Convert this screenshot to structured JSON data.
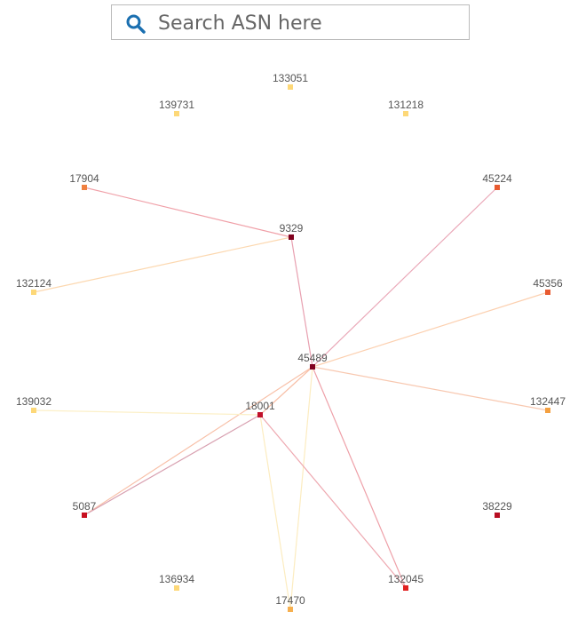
{
  "search": {
    "placeholder": "Search ASN here"
  },
  "nodes": [
    {
      "label": "133051",
      "color": "#fdd878"
    },
    {
      "label": "139731",
      "color": "#fdd878"
    },
    {
      "label": "131218",
      "color": "#fdd878"
    },
    {
      "label": "17904",
      "color": "#f08040"
    },
    {
      "label": "45224",
      "color": "#e85a30"
    },
    {
      "label": "9329",
      "color": "#80001e"
    },
    {
      "label": "132124",
      "color": "#fdd878"
    },
    {
      "label": "45356",
      "color": "#e85a30"
    },
    {
      "label": "45489",
      "color": "#80001e"
    },
    {
      "label": "139032",
      "color": "#fdd878"
    },
    {
      "label": "18001",
      "color": "#c0102a"
    },
    {
      "label": "132447",
      "color": "#f4a040"
    },
    {
      "label": "5087",
      "color": "#c81020"
    },
    {
      "label": "38229",
      "color": "#b80e22"
    },
    {
      "label": "136934",
      "color": "#fdd878"
    },
    {
      "label": "132045",
      "color": "#e02020"
    },
    {
      "label": "17470",
      "color": "#f6b050"
    }
  ],
  "edges": [
    {
      "source": 3,
      "target": 5,
      "color": "#f0a0a8"
    },
    {
      "source": 6,
      "target": 5,
      "color": "#fcd8b0"
    },
    {
      "source": 5,
      "target": 8,
      "color": "#e8a0b0"
    },
    {
      "source": 4,
      "target": 8,
      "color": "#eaa8b8"
    },
    {
      "source": 7,
      "target": 8,
      "color": "#fcd0b0"
    },
    {
      "source": 11,
      "target": 8,
      "color": "#f8c8b0"
    },
    {
      "source": 8,
      "target": 10,
      "color": "#f8c0a8"
    },
    {
      "source": 8,
      "target": 12,
      "color": "#f8c0a8"
    },
    {
      "source": 8,
      "target": 15,
      "color": "#eea0a8"
    },
    {
      "source": 8,
      "target": 16,
      "color": "#fcecc0"
    },
    {
      "source": 9,
      "target": 10,
      "color": "#fcf0c8"
    },
    {
      "source": 10,
      "target": 12,
      "color": "#d8a0b0"
    },
    {
      "source": 10,
      "target": 15,
      "color": "#eea8b0"
    },
    {
      "source": 10,
      "target": 16,
      "color": "#fcecc0"
    }
  ]
}
